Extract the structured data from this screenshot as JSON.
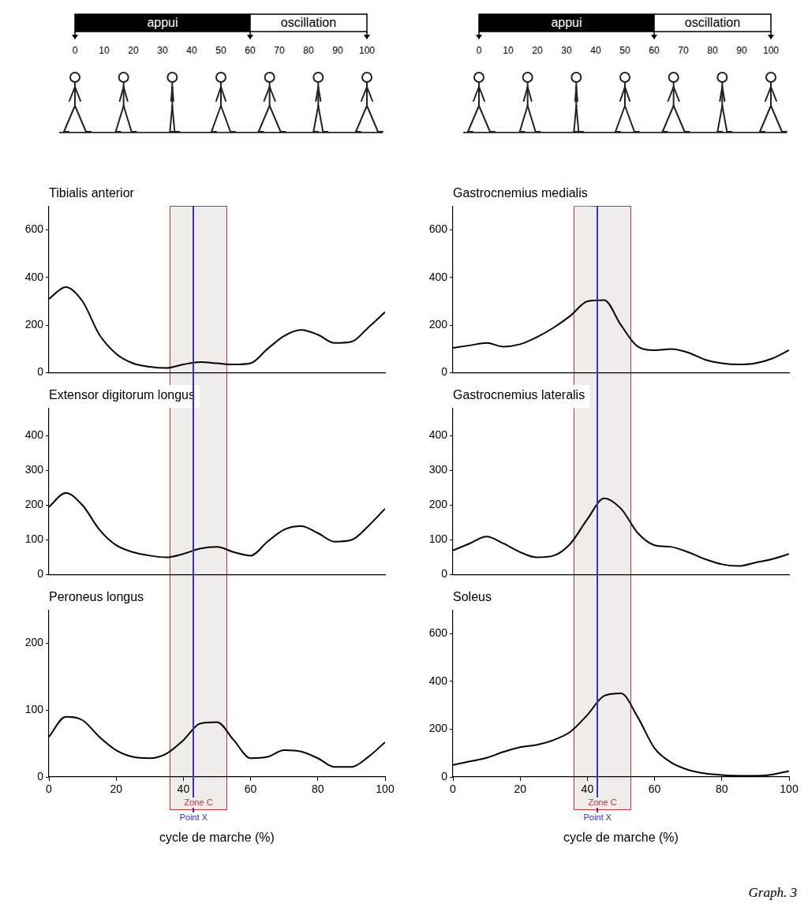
{
  "chart_data": [
    {
      "type": "line",
      "title": "Tibialis anterior",
      "x": [
        0,
        5,
        10,
        15,
        20,
        25,
        30,
        35,
        40,
        45,
        50,
        55,
        60,
        65,
        70,
        75,
        80,
        85,
        90,
        95,
        100
      ],
      "values": [
        310,
        360,
        300,
        160,
        80,
        40,
        25,
        20,
        35,
        45,
        40,
        35,
        40,
        100,
        155,
        180,
        160,
        125,
        130,
        190,
        255
      ],
      "color": "#000000",
      "xlim": [
        0,
        100
      ],
      "ylim": [
        0,
        700
      ],
      "yticks": [
        0,
        200,
        400,
        600
      ],
      "grid": false,
      "tick_labels": "y"
    },
    {
      "type": "line",
      "title": "Extensor digitorum longus",
      "x": [
        0,
        5,
        10,
        15,
        20,
        25,
        30,
        35,
        40,
        45,
        50,
        55,
        60,
        65,
        70,
        75,
        80,
        85,
        90,
        95,
        100
      ],
      "values": [
        195,
        235,
        200,
        130,
        85,
        65,
        55,
        50,
        60,
        75,
        80,
        65,
        55,
        95,
        130,
        140,
        120,
        95,
        100,
        140,
        190
      ],
      "color": "#000000",
      "xlim": [
        0,
        100
      ],
      "ylim": [
        0,
        480
      ],
      "yticks": [
        0,
        100,
        200,
        300,
        400
      ],
      "grid": false,
      "tick_labels": "y"
    },
    {
      "type": "line",
      "title": "Peroneus longus",
      "x": [
        0,
        5,
        10,
        15,
        20,
        25,
        30,
        35,
        40,
        45,
        50,
        55,
        60,
        65,
        70,
        75,
        80,
        85,
        90,
        95,
        100
      ],
      "values": [
        60,
        90,
        85,
        60,
        40,
        30,
        28,
        35,
        55,
        80,
        82,
        55,
        28,
        30,
        40,
        38,
        28,
        15,
        15,
        30,
        52
      ],
      "color": "#000000",
      "xlim": [
        0,
        100
      ],
      "xticks": [
        0,
        20,
        40,
        60,
        80,
        100
      ],
      "x_label": "cycle de marche (%)",
      "ylim": [
        0,
        250
      ],
      "yticks": [
        0,
        100,
        200
      ],
      "grid": false
    },
    {
      "type": "line",
      "title": "Gastrocnemius medialis",
      "x": [
        0,
        5,
        10,
        15,
        20,
        25,
        30,
        35,
        40,
        45,
        50,
        55,
        60,
        65,
        70,
        75,
        80,
        85,
        90,
        95,
        100
      ],
      "values": [
        105,
        115,
        125,
        110,
        120,
        150,
        190,
        240,
        300,
        305,
        200,
        110,
        95,
        100,
        85,
        55,
        40,
        35,
        40,
        60,
        95
      ],
      "color": "#000000",
      "xlim": [
        0,
        100
      ],
      "ylim": [
        0,
        700
      ],
      "yticks": [
        0,
        200,
        400,
        600
      ],
      "grid": false,
      "tick_labels": "y"
    },
    {
      "type": "line",
      "title": "Gastrocnemius lateralis",
      "x": [
        0,
        5,
        10,
        15,
        20,
        25,
        30,
        35,
        40,
        45,
        50,
        55,
        60,
        65,
        70,
        75,
        80,
        85,
        90,
        95,
        100
      ],
      "values": [
        70,
        90,
        110,
        90,
        65,
        50,
        55,
        90,
        160,
        220,
        190,
        120,
        85,
        80,
        65,
        45,
        30,
        25,
        35,
        45,
        60
      ],
      "color": "#000000",
      "xlim": [
        0,
        100
      ],
      "ylim": [
        0,
        480
      ],
      "yticks": [
        0,
        100,
        200,
        300,
        400
      ],
      "grid": false,
      "tick_labels": "y"
    },
    {
      "type": "line",
      "title": "Soleus",
      "x": [
        0,
        5,
        10,
        15,
        20,
        25,
        30,
        35,
        40,
        45,
        50,
        55,
        60,
        65,
        70,
        75,
        80,
        85,
        90,
        95,
        100
      ],
      "values": [
        50,
        65,
        80,
        105,
        125,
        135,
        155,
        190,
        260,
        340,
        350,
        250,
        120,
        60,
        30,
        15,
        8,
        5,
        5,
        10,
        25
      ],
      "color": "#000000",
      "xlim": [
        0,
        100
      ],
      "xticks": [
        0,
        20,
        40,
        60,
        80,
        100
      ],
      "x_label": "cycle de marche (%)",
      "ylim": [
        0,
        700
      ],
      "yticks": [
        0,
        200,
        400,
        600
      ],
      "grid": false
    }
  ],
  "phase_bar": {
    "phases": [
      {
        "label": "appui",
        "start": 0,
        "end": 60,
        "color": "#000000"
      },
      {
        "label": "oscillation",
        "start": 60,
        "end": 100,
        "color": "#ffffff"
      }
    ],
    "ticks": [
      0,
      10,
      20,
      30,
      40,
      50,
      60,
      70,
      80,
      90,
      100
    ]
  },
  "annotations": [
    {
      "label": "Zone C",
      "x": [
        36,
        53
      ],
      "color": "#cc3333"
    },
    {
      "label": "Point X",
      "x": 43,
      "color": "#3333cc"
    }
  ],
  "caption": "Graph. 3"
}
